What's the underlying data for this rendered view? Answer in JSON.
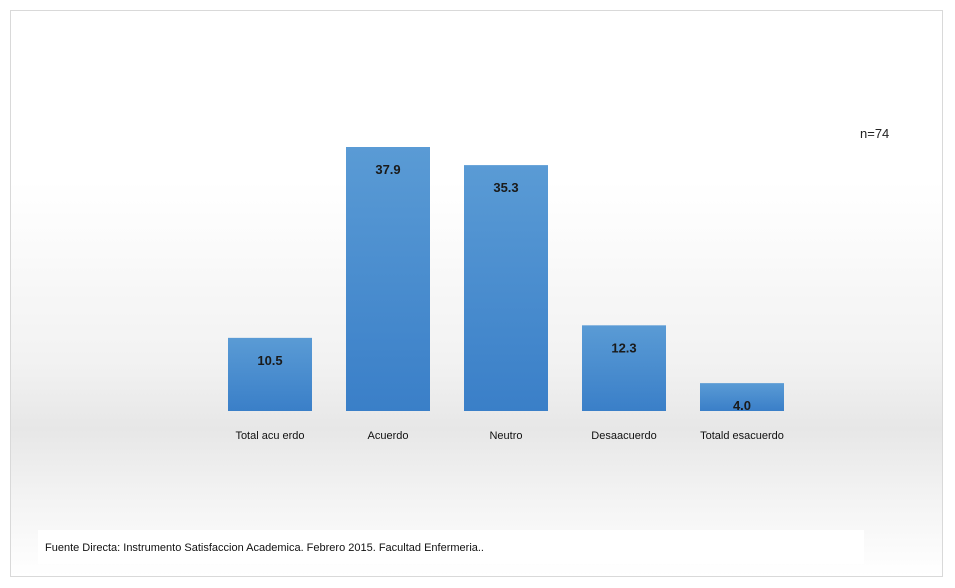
{
  "note": "n=74",
  "source": "Fuente Directa: Instrumento Satisfaccion Academica. Febrero 2015. Facultad Enfermeria..",
  "colors": {
    "bar_top": "#5a9bd5",
    "bar_bottom": "#3a7fc8"
  },
  "chart_data": {
    "type": "bar",
    "categories": [
      "Total acu erdo",
      "Acuerdo",
      "Neutro",
      "Desaacuerdo",
      "Totald esacuerdo"
    ],
    "values": [
      10.5,
      37.9,
      35.3,
      12.3,
      4.0
    ],
    "value_labels": [
      "10.5",
      "37.9",
      "35.3",
      "12.3",
      "4.0"
    ],
    "title": "",
    "xlabel": "",
    "ylabel": "",
    "ylim": [
      0,
      37.9
    ],
    "grid": false,
    "legend": "none"
  }
}
